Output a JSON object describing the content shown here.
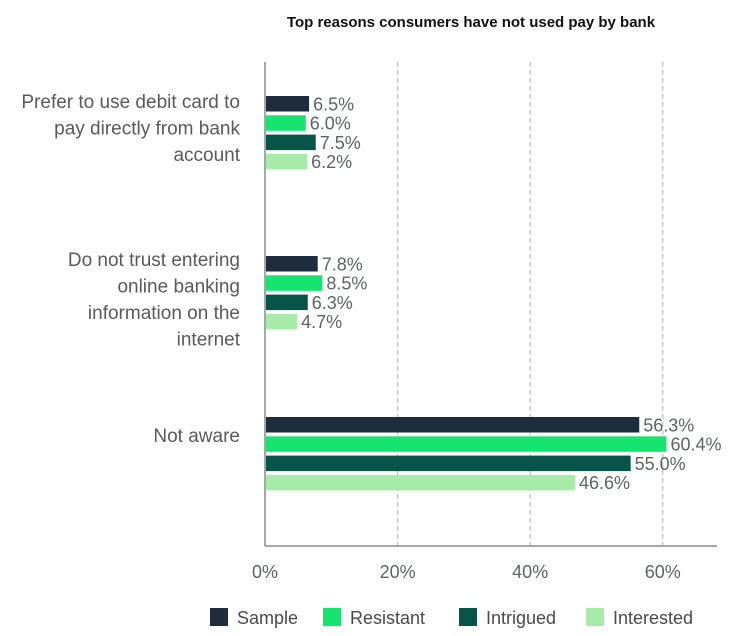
{
  "chart_data": {
    "type": "bar",
    "orientation": "horizontal",
    "title": "Top reasons consumers have not used pay by bank",
    "categories": [
      "Prefer to use debit card to pay directly from bank account",
      "Do not trust entering online banking information on the internet",
      "Not aware"
    ],
    "category_lines": [
      [
        "Prefer to use debit card to",
        "pay directly from bank",
        "account"
      ],
      [
        "Do not trust entering",
        "online banking",
        "information on the",
        "internet"
      ],
      [
        "Not aware"
      ]
    ],
    "series": [
      {
        "name": "Sample",
        "color": "#1e2d3b",
        "values": [
          6.5,
          7.8,
          56.3
        ],
        "labels": [
          "6.5%",
          "7.8%",
          "56.3%"
        ]
      },
      {
        "name": "Resistant",
        "color": "#17e36f",
        "values": [
          6.0,
          8.5,
          60.4
        ],
        "labels": [
          "6.0%",
          "8.5%",
          "60.4%"
        ]
      },
      {
        "name": "Intrigued",
        "color": "#075549",
        "values": [
          7.5,
          6.3,
          55.0
        ],
        "labels": [
          "7.5%",
          "6.3%",
          "55.0%"
        ]
      },
      {
        "name": "Interested",
        "color": "#a6eba7",
        "values": [
          6.2,
          4.7,
          46.6
        ],
        "labels": [
          "6.2%",
          "4.7%",
          "46.6%"
        ]
      }
    ],
    "xlim": [
      0,
      68
    ],
    "xticks": [
      0,
      20,
      40,
      60
    ],
    "xtick_labels": [
      "0%",
      "20%",
      "40%",
      "60%"
    ],
    "grid": "vertical dashed",
    "legend": "bottom",
    "xlabel": "",
    "ylabel": ""
  }
}
